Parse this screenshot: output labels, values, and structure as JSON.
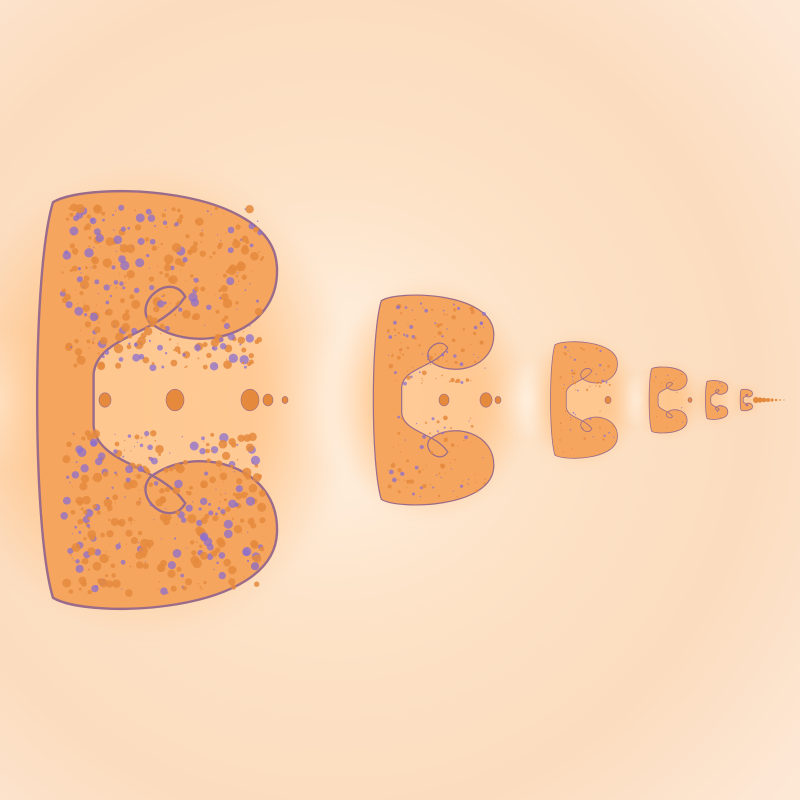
{
  "image": {
    "subject": "fractal",
    "colors": {
      "background_light": "#fff6ec",
      "background_mid": "#fde3c8",
      "background_deep": "#fbd3ad",
      "glow": "#ffb877",
      "body": "#f6a55e",
      "body_edge": "#c27a66",
      "dots_orange": "#e58a3d",
      "dots_purple": "#8b6fcf",
      "outline": "#9a6b8a"
    }
  }
}
